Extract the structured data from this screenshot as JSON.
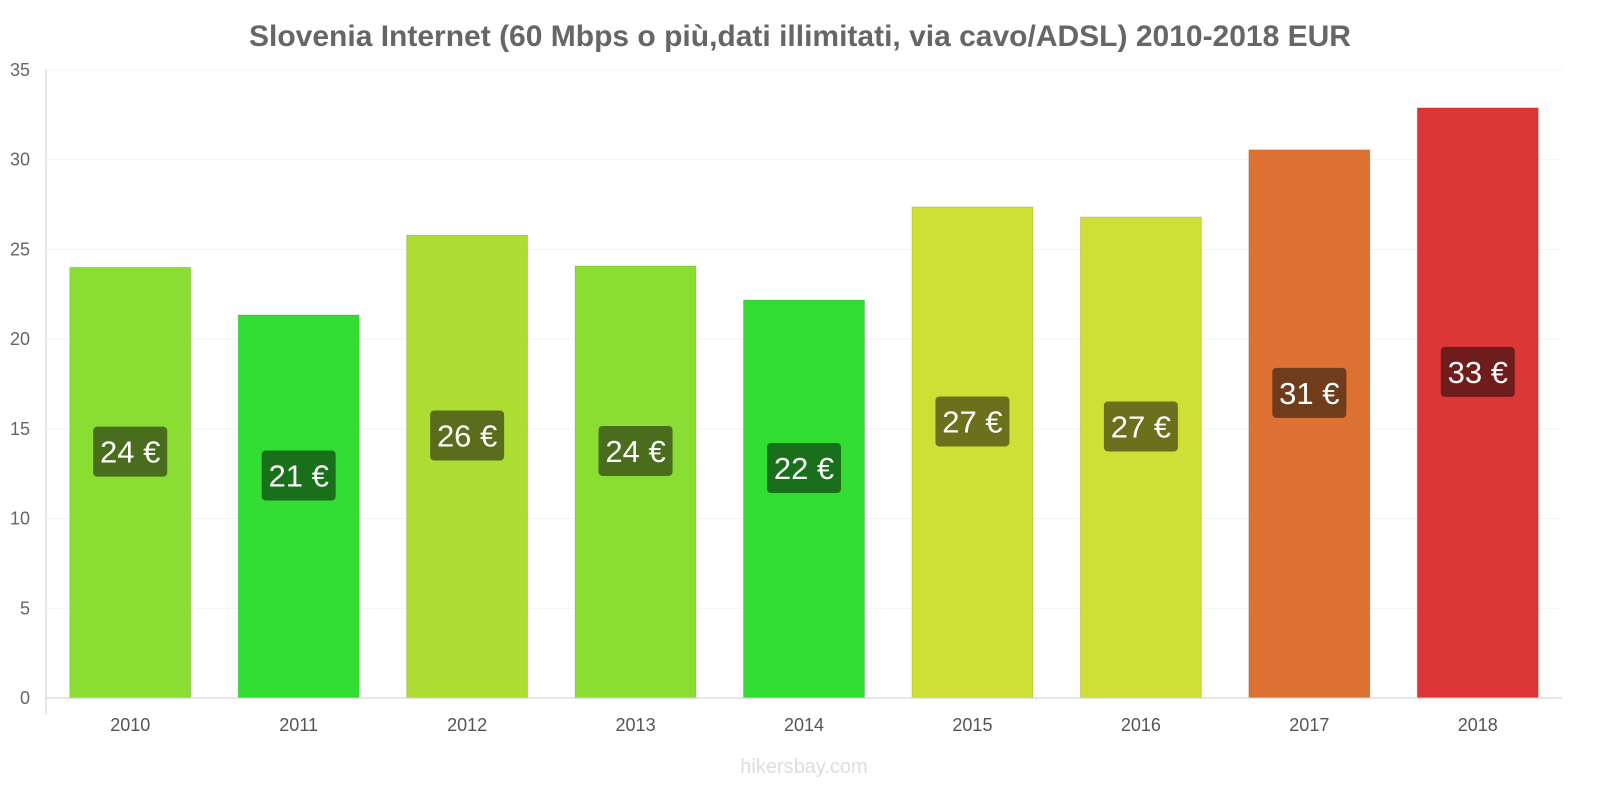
{
  "chart_data": {
    "type": "bar",
    "title": "Slovenia Internet (60 Mbps o più,dati illimitati, via cavo/ADSL) 2010-2018 EUR",
    "xlabel": "",
    "ylabel": "",
    "ylim": [
      0,
      35
    ],
    "yticks": [
      0,
      5,
      10,
      15,
      20,
      25,
      30,
      35
    ],
    "grid": true,
    "categories": [
      "2010",
      "2011",
      "2012",
      "2013",
      "2014",
      "2015",
      "2016",
      "2017",
      "2018"
    ],
    "values": [
      24.0,
      21.35,
      25.8,
      24.08,
      22.18,
      27.37,
      26.81,
      30.55,
      32.89
    ],
    "data_labels": [
      "24 €",
      "21 €",
      "26 €",
      "24 €",
      "22 €",
      "27 €",
      "27 €",
      "31 €",
      "33 €"
    ],
    "bar_colors": [
      "#8ade33",
      "#33dd33",
      "#addd33",
      "#8ade33",
      "#33dd33",
      "#cfdf36",
      "#cfdf36",
      "#dd7033",
      "#dd3636"
    ],
    "label_colors": [
      "#4a6d1d",
      "#1a6f1a",
      "#5a6d1c",
      "#4a6d1d",
      "#1a6f1a",
      "#6b701c",
      "#6b701c",
      "#6f3c1c",
      "#6f1c1c"
    ]
  },
  "watermark": "hikersbay.com"
}
